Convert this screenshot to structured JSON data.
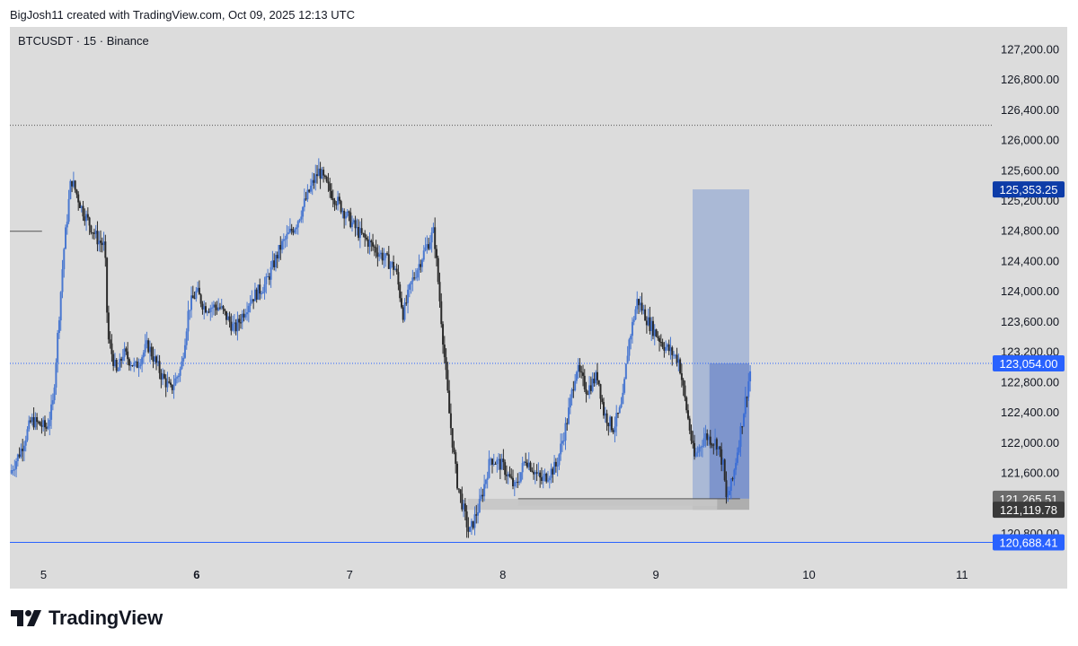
{
  "header": {
    "credit": "BigJosh11 created with TradingView.com, Oct 09, 2025 12:13 UTC"
  },
  "brand": {
    "name": "TradingView",
    "logo_icon": "tradingview-logo-icon"
  },
  "colors": {
    "background": "#dcdcdc",
    "candle": "#2b2b2b",
    "candle_up_recent": "#3d6fd6",
    "blue_label": "#2962ff",
    "dark_blue_label": "#0d3ca8",
    "grey_label": "#6b6b6b",
    "dark_label": "#3a3a3a",
    "target_box": "#9aaed4",
    "entry_box": "#6f8ac8",
    "zone": "#c4c4c4"
  },
  "chart_data": {
    "type": "candlestick",
    "title": "BTCUSDT · 15 · Binance",
    "ylim": [
      120600,
      127500
    ],
    "xlim": [
      4.98,
      11.4
    ],
    "y_ticks": [
      "127,200.00",
      "126,800.00",
      "126,400.00",
      "126,000.00",
      "125,600.00",
      "125,200.00",
      "124,800.00",
      "124,400.00",
      "124,000.00",
      "123,600.00",
      "123,200.00",
      "122,800.00",
      "122,400.00",
      "122,000.00",
      "121,600.00",
      "120,800.00"
    ],
    "y_tick_values": [
      127200,
      126800,
      126400,
      126000,
      125600,
      125200,
      124800,
      124400,
      124000,
      123600,
      123200,
      122800,
      122400,
      122000,
      121600,
      120800
    ],
    "x_ticks": [
      {
        "label": "5",
        "value": 5.2
      },
      {
        "label": "6",
        "value": 6.2
      },
      {
        "label": "7",
        "value": 7.2
      },
      {
        "label": "8",
        "value": 8.2
      },
      {
        "label": "9",
        "value": 9.2
      },
      {
        "label": "10",
        "value": 10.2
      },
      {
        "label": "11",
        "value": 11.2
      }
    ],
    "price_path": [
      [
        4.98,
        121600
      ],
      [
        5.05,
        121900
      ],
      [
        5.12,
        122300
      ],
      [
        5.22,
        122200
      ],
      [
        5.26,
        122500
      ],
      [
        5.33,
        124500
      ],
      [
        5.38,
        125500
      ],
      [
        5.45,
        125100
      ],
      [
        5.55,
        124700
      ],
      [
        5.6,
        124600
      ],
      [
        5.62,
        123400
      ],
      [
        5.68,
        122900
      ],
      [
        5.72,
        123200
      ],
      [
        5.8,
        123000
      ],
      [
        5.88,
        123300
      ],
      [
        5.97,
        122900
      ],
      [
        6.03,
        122700
      ],
      [
        6.1,
        123000
      ],
      [
        6.15,
        123800
      ],
      [
        6.2,
        124000
      ],
      [
        6.25,
        123800
      ],
      [
        6.35,
        123800
      ],
      [
        6.45,
        123500
      ],
      [
        6.55,
        123900
      ],
      [
        6.65,
        124100
      ],
      [
        6.75,
        124600
      ],
      [
        6.85,
        124900
      ],
      [
        6.95,
        125400
      ],
      [
        7.0,
        125600
      ],
      [
        7.05,
        125400
      ],
      [
        7.15,
        125100
      ],
      [
        7.25,
        124800
      ],
      [
        7.4,
        124500
      ],
      [
        7.5,
        124300
      ],
      [
        7.55,
        123700
      ],
      [
        7.6,
        124100
      ],
      [
        7.68,
        124500
      ],
      [
        7.75,
        124800
      ],
      [
        7.8,
        123600
      ],
      [
        7.85,
        122400
      ],
      [
        7.9,
        121500
      ],
      [
        7.98,
        120800
      ],
      [
        8.05,
        121200
      ],
      [
        8.12,
        121800
      ],
      [
        8.2,
        121700
      ],
      [
        8.28,
        121400
      ],
      [
        8.35,
        121800
      ],
      [
        8.45,
        121500
      ],
      [
        8.55,
        121700
      ],
      [
        8.62,
        122300
      ],
      [
        8.68,
        123000
      ],
      [
        8.75,
        122700
      ],
      [
        8.82,
        122900
      ],
      [
        8.86,
        122400
      ],
      [
        8.92,
        122200
      ],
      [
        8.98,
        122500
      ],
      [
        9.02,
        123300
      ],
      [
        9.08,
        123900
      ],
      [
        9.15,
        123600
      ],
      [
        9.25,
        123300
      ],
      [
        9.3,
        123200
      ],
      [
        9.35,
        123100
      ],
      [
        9.38,
        122700
      ],
      [
        9.42,
        122200
      ],
      [
        9.45,
        121800
      ],
      [
        9.52,
        122100
      ],
      [
        9.6,
        122000
      ],
      [
        9.64,
        121700
      ],
      [
        9.66,
        121250
      ],
      [
        9.7,
        121500
      ],
      [
        9.74,
        122000
      ],
      [
        9.78,
        122500
      ],
      [
        9.82,
        123000
      ]
    ],
    "horizontal_lines": [
      {
        "price": 126200,
        "style": "dotted",
        "x_from": 4.98
      },
      {
        "price": 123054.0,
        "style": "dotted",
        "x_from": 4.98
      },
      {
        "price": 120688.41,
        "style": "solid",
        "x_from": 4.98
      },
      {
        "price": 124800,
        "style": "solid",
        "x_from": 4.98,
        "x_to": 5.19
      },
      {
        "price": 121265.51,
        "style": "solid",
        "x_from": 8.3,
        "x_to": 9.75
      }
    ],
    "zones": [
      {
        "x_from": 7.97,
        "x_to": 9.6,
        "y_from": 121120,
        "y_to": 121265
      },
      {
        "x_from": 8.3,
        "x_to": 9.6,
        "y_from": 121170,
        "y_to": 121265
      }
    ],
    "position_tool": {
      "x_from": 9.44,
      "x_to": 9.81,
      "x_entry_from": 9.55,
      "target": 125353.25,
      "entry": 123054.0,
      "stop_top": 121265.51,
      "stop_bottom": 121119.78
    },
    "price_labels": [
      {
        "text": "125,353.25",
        "price": 125353.25,
        "style": "dark_blue"
      },
      {
        "text": "123,054.00",
        "price": 123054.0,
        "style": "blue"
      },
      {
        "text": "121,265.51",
        "price": 121265.51,
        "style": "grey"
      },
      {
        "text": "121,119.78",
        "price": 121119.78,
        "style": "dark"
      },
      {
        "text": "120,688.41",
        "price": 120688.41,
        "style": "blue"
      }
    ]
  }
}
